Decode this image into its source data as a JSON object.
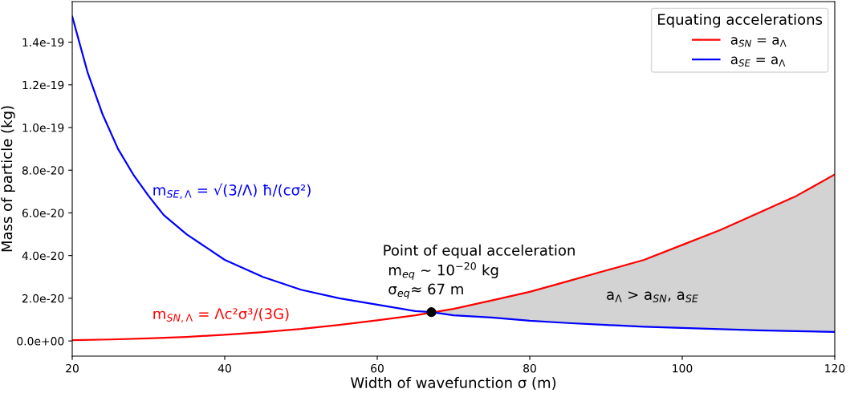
{
  "chart_data": {
    "type": "line",
    "xlabel": "Width of wavefunction σ (m)",
    "ylabel": "Mass of particle (kg)",
    "legend_title": "Equating accelerations",
    "legend": "top right",
    "grid": false,
    "xlim": [
      20,
      120
    ],
    "xticks": [
      20,
      40,
      60,
      80,
      100,
      120
    ],
    "ylim": [
      -7.1e-21,
      1.59e-19
    ],
    "yticks": [
      {
        "value": 0,
        "label": "0.0e+00"
      },
      {
        "value": 2e-20,
        "label": "2.0e-20"
      },
      {
        "value": 4e-20,
        "label": "4.0e-20"
      },
      {
        "value": 6e-20,
        "label": "6.0e-20"
      },
      {
        "value": 8e-20,
        "label": "8.0e-20"
      },
      {
        "value": 1e-19,
        "label": "1.0e-19"
      },
      {
        "value": 1.2e-19,
        "label": "1.2e-19"
      },
      {
        "value": 1.4e-19,
        "label": "1.4e-19"
      }
    ],
    "series": [
      {
        "name": "a$_{SN}$ = a$_{Λ}$",
        "color": "#ff0000",
        "x": [
          20,
          25,
          30,
          35,
          40,
          45,
          50,
          55,
          60,
          65,
          70,
          75,
          80,
          85,
          90,
          95,
          100,
          105,
          110,
          115,
          120
        ],
        "values": [
          4e-22,
          7e-22,
          1.2e-21,
          1.9e-21,
          2.9e-21,
          4.1e-21,
          5.6e-21,
          7.5e-21,
          9.7e-21,
          1.2e-20,
          1.5e-20,
          1.9e-20,
          2.3e-20,
          2.8e-20,
          3.3e-20,
          3.8e-20,
          4.5e-20,
          5.2e-20,
          6e-20,
          6.8e-20,
          7.8e-20
        ]
      },
      {
        "name": "a$_{SE}$ = a$_{Λ}$",
        "color": "#0000ff",
        "x": [
          20,
          22,
          24,
          26,
          28,
          30,
          32,
          35,
          40,
          45,
          50,
          55,
          60,
          65,
          67.1,
          70,
          75,
          80,
          85,
          90,
          95,
          100,
          105,
          110,
          115,
          120
        ],
        "values": [
          1.52e-19,
          1.26e-19,
          1.06e-19,
          9e-20,
          7.8e-20,
          6.8e-20,
          5.9e-20,
          5e-20,
          3.8e-20,
          3e-20,
          2.4e-20,
          2e-20,
          1.7e-20,
          1.4e-20,
          1.35e-20,
          1.2e-20,
          1.1e-20,
          9.5e-21,
          8.4e-21,
          7.5e-21,
          6.7e-21,
          6.1e-21,
          5.5e-21,
          5e-21,
          4.6e-21,
          4.2e-21
        ],
        "lower": [
          null,
          null,
          null,
          null,
          null,
          null,
          null,
          null,
          null,
          null,
          null,
          null,
          null,
          null,
          1.35e-20,
          1.2e-20,
          1.1e-20,
          9.5e-21,
          8.4e-21,
          7.5e-21,
          6.7e-21,
          6.1e-21,
          5.5e-21,
          5e-21,
          4.6e-21,
          4.2e-21
        ],
        "upper": [
          null,
          null,
          null,
          null,
          null,
          null,
          null,
          null,
          null,
          null,
          null,
          null,
          null,
          null,
          1.35e-20,
          1.5e-20,
          1.9e-20,
          2.3e-20,
          2.8e-20,
          3.3e-20,
          3.8e-20,
          4.5e-20,
          5.2e-20,
          6e-20,
          6.8e-20,
          7.8e-20
        ]
      },
      {
        "type": "scatter",
        "color": "#000000",
        "marker": "circle",
        "x": [
          67.1
        ],
        "values": [
          1.35e-20
        ]
      }
    ],
    "annotations": [
      "m$_{SN,Λ}$ = Λc²σ³/(3G)",
      "m$_{SE,Λ}$ = √(3/Λ) ħ/(cσ²)",
      "Point of equal acceleration",
      "m$_{eq}$ ~ 10$^{−20}$ kg",
      "σ$_{eq}$≈ 67 m",
      "a$_{Λ}$ > a$_{SN}$, a$_{SE}$"
    ]
  }
}
